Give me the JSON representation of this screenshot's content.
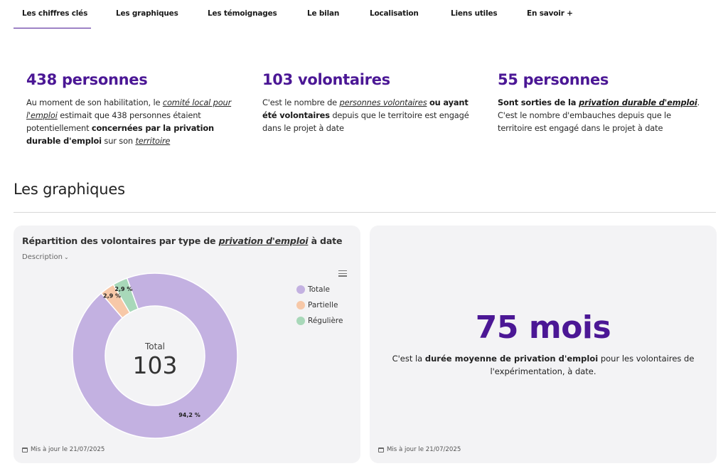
{
  "nav": {
    "items": [
      {
        "label": "Les chiffres clés",
        "active": true
      },
      {
        "label": "Les graphiques"
      },
      {
        "label": "Les témoignages"
      },
      {
        "label": "Le bilan"
      },
      {
        "label": "Localisation"
      },
      {
        "label": "Liens utiles"
      },
      {
        "label": "En savoir +"
      }
    ]
  },
  "stats": [
    {
      "number": "438 personnes",
      "desc": {
        "p1": "Au moment de son habilitation, le ",
        "link1": "comité local pour l'emploi",
        "p2": " estimait que 438 personnes étaient potentiellement ",
        "bold1": "concernées par la privation durable d'emploi",
        "p3": " sur son ",
        "link2": "territoire"
      }
    },
    {
      "number": "103 volontaires",
      "desc": {
        "p1": "C'est le nombre de ",
        "link1": "personnes volontaires",
        "p2": " ",
        "bold1": "ou ayant été volontaires",
        "p3": " depuis que le territoire est engagé dans le projet à date"
      }
    },
    {
      "number": "55 personnes",
      "desc": {
        "bold1": "Sont sorties de la ",
        "boldlink": "privation durable d'emploi",
        "p1": ".",
        "p2": " C'est le nombre d'embauches depuis que le territoire est engagé dans le projet à date"
      }
    }
  ],
  "section": {
    "title": "Les graphiques"
  },
  "chart_card": {
    "title_pre": "Répartition des volontaires par type de ",
    "title_link": "privation d'emploi",
    "title_post": " à date",
    "description_toggle": "Description",
    "updated": "Mis à jour le 21/07/2025",
    "menu_icon": "hamburger-icon"
  },
  "chart_data": {
    "type": "pie",
    "variant": "donut",
    "title": "Répartition des volontaires par type de privation d'emploi à date",
    "center_label": "Total",
    "center_value": "103",
    "series": [
      {
        "name": "Totale",
        "value": 94.2,
        "label": "94,2 %",
        "color": "#c3b1e1"
      },
      {
        "name": "Partielle",
        "value": 2.9,
        "label": "2,9 %",
        "color": "#f7c8a8"
      },
      {
        "name": "Régulière",
        "value": 2.9,
        "label": "2,9 %",
        "color": "#a8d8b9"
      }
    ],
    "legend": "right"
  },
  "kpi_card": {
    "value": "75 mois",
    "desc_p1": "C'est la ",
    "desc_bold": "durée moyenne de privation d'emploi",
    "desc_p2": " pour les volontaires de l'expérimentation, à date.",
    "updated": "Mis à jour le 21/07/2025"
  },
  "colors": {
    "accent": "#4b1795",
    "card_bg": "#f3f3f5"
  }
}
